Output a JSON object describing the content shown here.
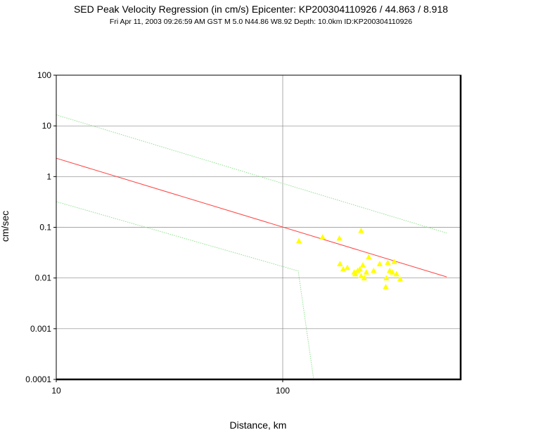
{
  "header": {
    "title": "SED Peak Velocity Regression (in cm/s) Epicenter: KP200304110926 / 44.863 / 8.918",
    "subtitle": "Fri Apr 11, 2003 09:26:59 AM GST    M 5.0    N44.86 W8.92    Depth: 10.0km    ID:KP200304110926"
  },
  "chart_data": {
    "type": "scatter",
    "title": "SED Peak Velocity Regression (in cm/s) Epicenter: KP200304110926 / 44.863 / 8.918",
    "subtitle": "Fri Apr 11, 2003 09:26:59 AM GST    M 5.0    N44.86 W8.92    Depth: 10.0km    ID:KP200304110926",
    "xlabel": "Distance, km",
    "ylabel": "cm/sec",
    "x_scale": "log",
    "y_scale": "log",
    "xlim": [
      10,
      570
    ],
    "ylim": [
      0.0001,
      100
    ],
    "x_ticks": [
      {
        "value": 10,
        "label": "10"
      },
      {
        "value": 100,
        "label": "100"
      }
    ],
    "y_ticks": [
      {
        "value": 100,
        "label": "100"
      },
      {
        "value": 10,
        "label": "10"
      },
      {
        "value": 1,
        "label": "1"
      },
      {
        "value": 0.1,
        "label": "0.1"
      },
      {
        "value": 0.01,
        "label": "0.01"
      },
      {
        "value": 0.001,
        "label": "0.001"
      },
      {
        "value": 0.0001,
        "label": "0.0001"
      }
    ],
    "grid": true,
    "colors": {
      "regression": "#ff4040",
      "bounds": "#90e090",
      "points": "#ffff00",
      "grid": "#888888",
      "frame": "#000000"
    },
    "regression_line": [
      [
        10,
        2.3
      ],
      [
        530,
        0.0105
      ]
    ],
    "upper_bound": [
      [
        10,
        16.5
      ],
      [
        530,
        0.077
      ]
    ],
    "lower_bound": [
      [
        10,
        0.32
      ],
      [
        117,
        0.0138
      ],
      [
        137,
        0.0001
      ]
    ],
    "points": [
      [
        118,
        0.054
      ],
      [
        150,
        0.064
      ],
      [
        178,
        0.061
      ],
      [
        222,
        0.086
      ],
      [
        179,
        0.019
      ],
      [
        185,
        0.015
      ],
      [
        193,
        0.016
      ],
      [
        207,
        0.013
      ],
      [
        209,
        0.012
      ],
      [
        214,
        0.014
      ],
      [
        219,
        0.015
      ],
      [
        222,
        0.011
      ],
      [
        226,
        0.018
      ],
      [
        229,
        0.01
      ],
      [
        234,
        0.013
      ],
      [
        240,
        0.026
      ],
      [
        252,
        0.014
      ],
      [
        268,
        0.019
      ],
      [
        285,
        0.0067
      ],
      [
        287,
        0.01
      ],
      [
        291,
        0.02
      ],
      [
        297,
        0.014
      ],
      [
        305,
        0.013
      ],
      [
        311,
        0.021
      ],
      [
        318,
        0.012
      ],
      [
        330,
        0.0095
      ]
    ]
  }
}
